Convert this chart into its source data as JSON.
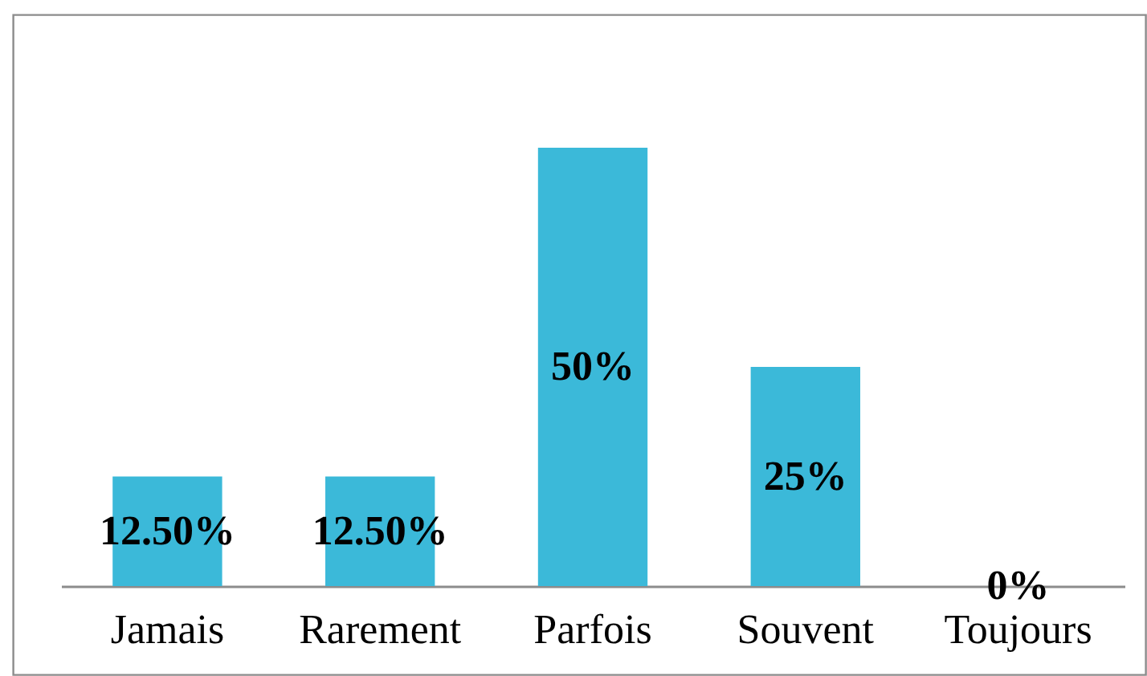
{
  "chart_data": {
    "type": "bar",
    "categories": [
      "Jamais",
      "Rarement",
      "Parfois",
      "Souvent",
      "Toujours"
    ],
    "values": [
      12.5,
      12.5,
      50,
      25,
      0
    ],
    "value_labels": [
      "12.50%",
      "12.50%",
      "50%",
      "25%",
      "0%"
    ],
    "color": "#3bb9d9"
  }
}
